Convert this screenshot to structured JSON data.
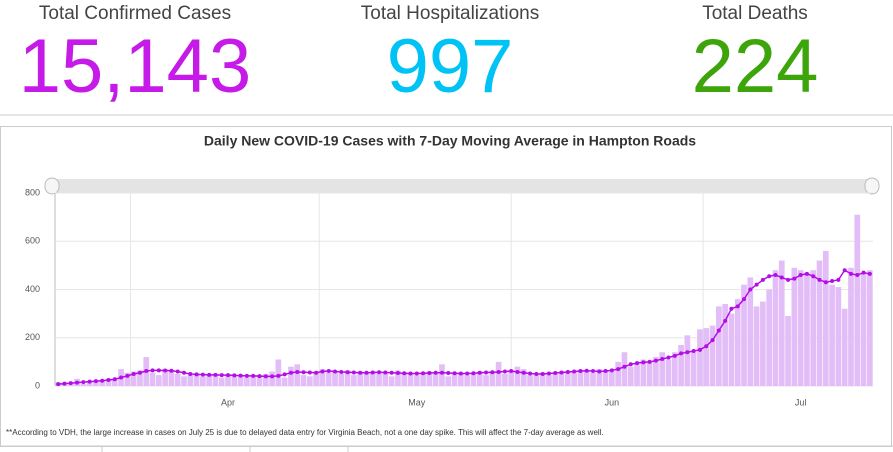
{
  "kpis": [
    {
      "label": "Total Confirmed Cases",
      "value": "15,143",
      "color": "#c61be8"
    },
    {
      "label": "Total Hospitalizations",
      "value": "997",
      "color": "#00c3f5"
    },
    {
      "label": "Total Deaths",
      "value": "224",
      "color": "#3da50a"
    }
  ],
  "chart_data": {
    "type": "bar",
    "title": "Daily New COVID-19 Cases with 7-Day Moving Average in Hampton Roads",
    "categories": [
      null,
      null,
      null,
      null,
      null,
      null,
      null,
      null,
      null,
      null,
      null,
      null,
      null,
      null,
      null,
      null,
      null,
      null,
      null,
      null,
      null,
      null,
      null,
      null,
      null,
      null,
      null,
      "Apr",
      null,
      null,
      null,
      null,
      null,
      null,
      null,
      null,
      null,
      null,
      null,
      null,
      null,
      null,
      null,
      null,
      null,
      null,
      null,
      null,
      null,
      null,
      null,
      null,
      null,
      null,
      null,
      null,
      null,
      "May",
      null,
      null,
      null,
      null,
      null,
      null,
      null,
      null,
      null,
      null,
      null,
      null,
      null,
      null,
      null,
      null,
      null,
      null,
      null,
      null,
      null,
      null,
      null,
      null,
      null,
      null,
      null,
      null,
      null,
      null,
      "Jun",
      null,
      null,
      null,
      null,
      null,
      null,
      null,
      null,
      null,
      null,
      null,
      null,
      null,
      null,
      null,
      null,
      null,
      null,
      null,
      null,
      null,
      null,
      null,
      null,
      null,
      null,
      null,
      null,
      null,
      "Jul",
      null,
      null,
      null,
      null,
      null,
      null,
      null,
      null,
      null,
      null,
      null
    ],
    "series": [
      {
        "type": "bar",
        "color": "#e2bdf7",
        "values": [
          15,
          12,
          10,
          30,
          8,
          15,
          20,
          25,
          30,
          28,
          70,
          55,
          60,
          65,
          120,
          55,
          45,
          70,
          60,
          50,
          40,
          45,
          50,
          40,
          45,
          50,
          35,
          45,
          40,
          45,
          35,
          40,
          45,
          50,
          60,
          110,
          35,
          80,
          90,
          45,
          40,
          60,
          70,
          55,
          60,
          50,
          65,
          45,
          60,
          55,
          60,
          50,
          55,
          40,
          65,
          55,
          50,
          45,
          55,
          60,
          50,
          90,
          40,
          55,
          50,
          45,
          50,
          60,
          45,
          55,
          100,
          50,
          60,
          80,
          70,
          45,
          45,
          55,
          45,
          50,
          60,
          55,
          60,
          65,
          60,
          55,
          70,
          65,
          60,
          100,
          140,
          80,
          90,
          110,
          100,
          120,
          140,
          110,
          140,
          170,
          210,
          140,
          235,
          240,
          250,
          330,
          340,
          300,
          360,
          420,
          450,
          330,
          350,
          400,
          480,
          520,
          290,
          490,
          480,
          470,
          480,
          520,
          560,
          420,
          410,
          320,
          490,
          710,
          470,
          480
        ]
      },
      {
        "type": "line",
        "color": "#b40ee6",
        "values": [
          8,
          10,
          12,
          14,
          16,
          18,
          20,
          22,
          25,
          28,
          35,
          42,
          50,
          55,
          62,
          65,
          65,
          64,
          63,
          60,
          55,
          50,
          48,
          47,
          46,
          46,
          45,
          45,
          44,
          43,
          42,
          42,
          41,
          40,
          40,
          42,
          48,
          55,
          58,
          57,
          56,
          55,
          60,
          62,
          60,
          58,
          57,
          56,
          55,
          55,
          56,
          57,
          56,
          55,
          54,
          53,
          52,
          52,
          53,
          54,
          55,
          55,
          54,
          53,
          52,
          52,
          53,
          55,
          56,
          57,
          58,
          60,
          62,
          58,
          55,
          52,
          50,
          50,
          52,
          54,
          56,
          58,
          60,
          62,
          63,
          62,
          60,
          62,
          65,
          70,
          80,
          90,
          95,
          98,
          100,
          105,
          112,
          118,
          125,
          135,
          140,
          145,
          150,
          165,
          190,
          230,
          270,
          320,
          330,
          360,
          400,
          420,
          440,
          455,
          460,
          450,
          440,
          445,
          460,
          465,
          455,
          440,
          430,
          435,
          440,
          480,
          465,
          460,
          470,
          465
        ]
      }
    ],
    "ylim": [
      0,
      800
    ],
    "yticks": [
      0,
      200,
      400,
      600,
      800
    ],
    "grid": true,
    "note": "**According to VDH, the large increase in cases on July 25 is due to delayed data entry for Virginia Beach, not a one day spike. This will affect the 7-day average as well."
  }
}
